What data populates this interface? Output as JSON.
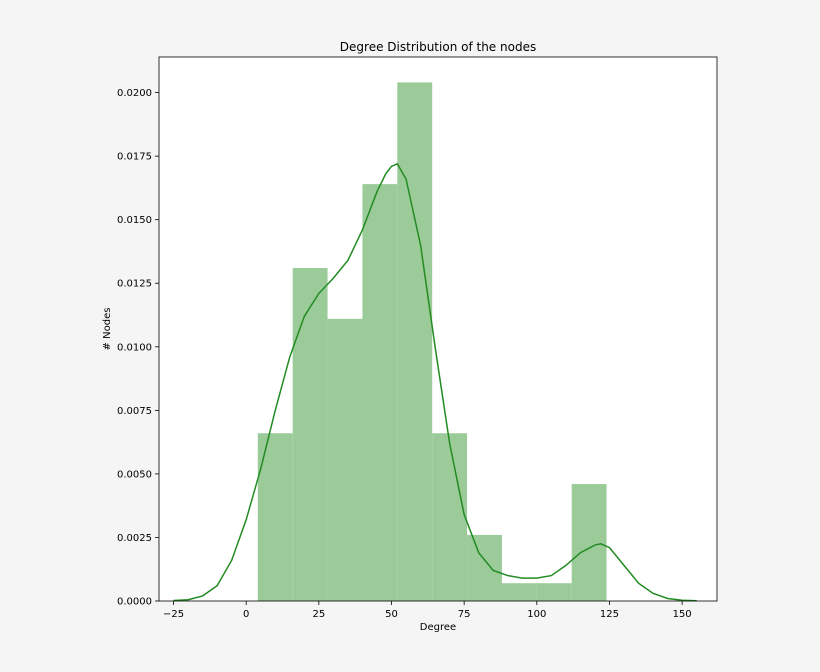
{
  "chart_data": {
    "type": "bar",
    "title": "Degree Distribution of the nodes",
    "xlabel": "Degree",
    "ylabel": "# Nodes",
    "xlim": [
      -30,
      162
    ],
    "ylim": [
      0,
      0.0214
    ],
    "xticks": [
      -25,
      0,
      25,
      50,
      75,
      100,
      125,
      150
    ],
    "xtick_labels": [
      "−25",
      "0",
      "25",
      "50",
      "75",
      "100",
      "125",
      "150"
    ],
    "yticks": [
      0,
      0.0025,
      0.005,
      0.0075,
      0.01,
      0.0125,
      0.015,
      0.0175,
      0.02
    ],
    "ytick_labels": [
      "0.0000",
      "0.0025",
      "0.0050",
      "0.0075",
      "0.0100",
      "0.0125",
      "0.0150",
      "0.0175",
      "0.0200"
    ],
    "grid": false,
    "legend": "none",
    "histogram": {
      "bin_edges": [
        4,
        16,
        28,
        40,
        52,
        64,
        76,
        88,
        100,
        112,
        124
      ],
      "densities": [
        0.0066,
        0.0131,
        0.0111,
        0.0164,
        0.0204,
        0.0066,
        0.0026,
        0.0007,
        0.0007,
        0.0046
      ],
      "color": "#9bcb99"
    },
    "kde": {
      "color": "#228b22",
      "x": [
        -25,
        -20,
        -15,
        -10,
        -5,
        0,
        5,
        10,
        15,
        20,
        25,
        30,
        35,
        40,
        45,
        48,
        50,
        52,
        55,
        60,
        65,
        70,
        75,
        80,
        85,
        90,
        95,
        100,
        105,
        110,
        115,
        120,
        122,
        125,
        130,
        135,
        140,
        145,
        150,
        155
      ],
      "y": [
        2e-05,
        5e-05,
        0.0002,
        0.0006,
        0.0016,
        0.0032,
        0.0052,
        0.0075,
        0.0096,
        0.0112,
        0.0121,
        0.0127,
        0.0134,
        0.0146,
        0.0161,
        0.0168,
        0.0171,
        0.0172,
        0.0166,
        0.014,
        0.01,
        0.0062,
        0.0034,
        0.0019,
        0.0012,
        0.001,
        0.0009,
        0.0009,
        0.001,
        0.0014,
        0.0019,
        0.0022,
        0.00225,
        0.0021,
        0.0014,
        0.0007,
        0.0003,
        0.0001,
        3e-05,
        1e-05
      ]
    }
  }
}
